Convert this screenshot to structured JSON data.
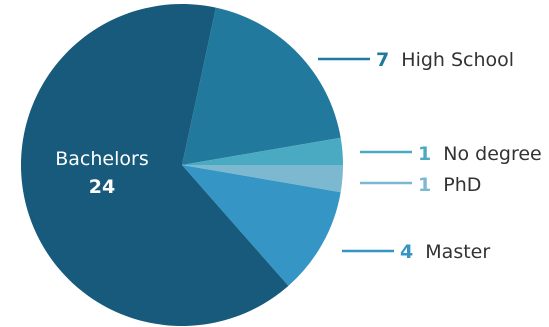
{
  "chart_data": {
    "type": "pie",
    "categories": [
      "Bachelors",
      "High School",
      "No degree",
      "PhD",
      "Master"
    ],
    "values": [
      24,
      7,
      1,
      1,
      4
    ],
    "colors": [
      "#175a7b",
      "#217a9d",
      "#4aaac2",
      "#7db8d1",
      "#3596c5"
    ]
  }
}
